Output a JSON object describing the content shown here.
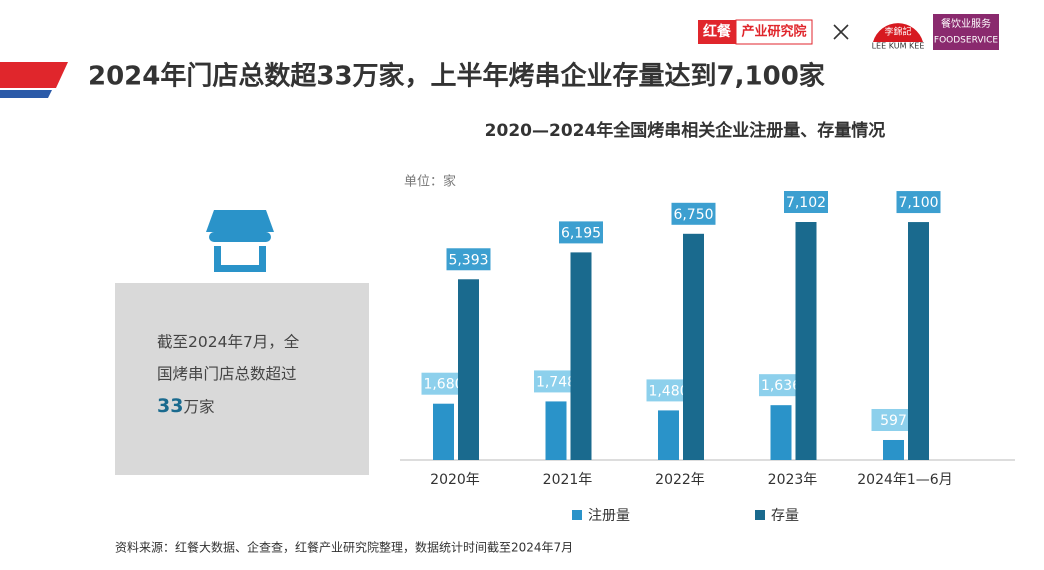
{
  "header": {
    "title": "2024年门店总数超33万家，上半年烤串企业存量达到7,100家",
    "logo_brand": "红餐",
    "logo_institute": "产业研究院",
    "partner_cn": "李錦記",
    "partner_en": "LEE KUM KEE",
    "service_cn": "餐饮业服务",
    "service_en": "FOODSERVICE"
  },
  "callout": {
    "text": "截至2024年7月，全国烤串门店总数超过",
    "number": "33",
    "unit": "万家"
  },
  "source": "资料来源：红餐大数据、企查查，红餐产业研究院整理，数据统计时间截至2024年7月",
  "chart_data": {
    "type": "bar",
    "title": "2020—2024年全国烤串相关企业注册量、存量情况",
    "unit_label": "单位：家",
    "categories": [
      "2020年",
      "2021年",
      "2022年",
      "2023年",
      "2024年1—6月"
    ],
    "series": [
      {
        "name": "注册量",
        "color": "#2a93c9",
        "label_color": "#8dd0ec",
        "values": [
          1680,
          1748,
          1480,
          1636,
          597
        ],
        "value_labels": [
          "1,680",
          "1,748",
          "1,480",
          "1,636",
          "597"
        ]
      },
      {
        "name": "存量",
        "color": "#1a6a8e",
        "label_color": "#3c9fd0",
        "values": [
          5393,
          6195,
          6750,
          7102,
          7100
        ],
        "value_labels": [
          "5,393",
          "6,195",
          "6,750",
          "7,102",
          "7,100"
        ]
      }
    ]
  }
}
